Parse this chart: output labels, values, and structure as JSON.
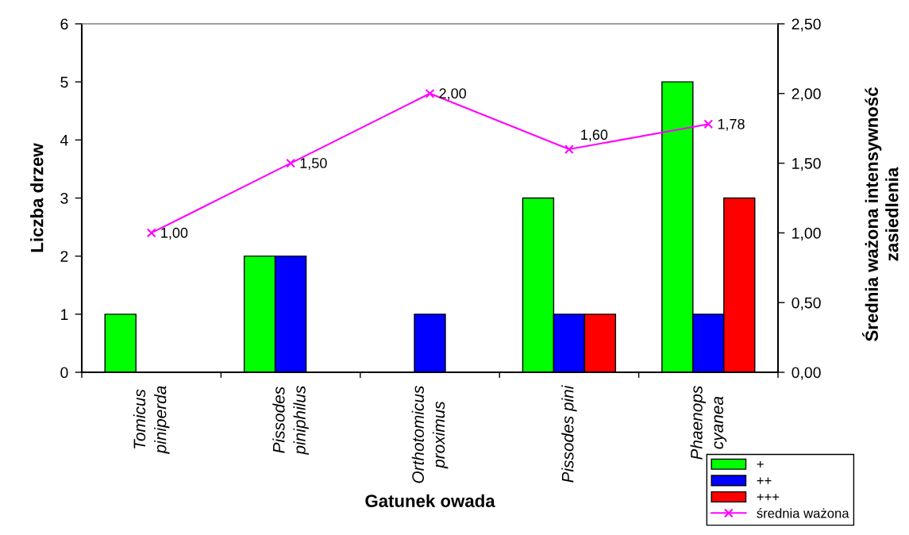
{
  "chart_data": {
    "type": "bar",
    "xlabel": "Gatunek owada",
    "ylabel": "Liczba drzew",
    "y2label": "Średnia ważona intensywność\nzasiedlenia",
    "categories": [
      "Tomicus\npiniperda",
      "Pissodes\npiniphilus",
      "Orthotomicus\nproximus",
      "Pissodes pini",
      "Phaenops\ncyanea"
    ],
    "series": [
      {
        "name": "+",
        "color": "#00ff00",
        "values": [
          1,
          2,
          null,
          3,
          5
        ]
      },
      {
        "name": "++",
        "color": "#0000ff",
        "values": [
          null,
          2,
          1,
          1,
          1
        ]
      },
      {
        "name": "+++",
        "color": "#ff0000",
        "values": [
          null,
          null,
          null,
          1,
          3
        ]
      },
      {
        "name": "średnia ważona",
        "type": "line",
        "axis": "y2",
        "color": "#ff00ff",
        "values": [
          1.0,
          1.5,
          2.0,
          1.6,
          1.78
        ],
        "value_labels": [
          "1,00",
          "1,50",
          "2,00",
          "1,60",
          "1,78"
        ]
      }
    ],
    "ylim": [
      0,
      6
    ],
    "yticks": [
      0,
      1,
      2,
      3,
      4,
      5,
      6
    ],
    "y2lim": [
      0,
      2.5
    ],
    "y2ticks": [
      {
        "value": 0,
        "label": "0,00"
      },
      {
        "value": 0.5,
        "label": "0,50"
      },
      {
        "value": 1,
        "label": "1,00"
      },
      {
        "value": 1.5,
        "label": "1,50"
      },
      {
        "value": 2,
        "label": "2,00"
      },
      {
        "value": 2.5,
        "label": "2,50"
      }
    ],
    "marker": "cross",
    "grid": false,
    "legend": "bottom right"
  }
}
